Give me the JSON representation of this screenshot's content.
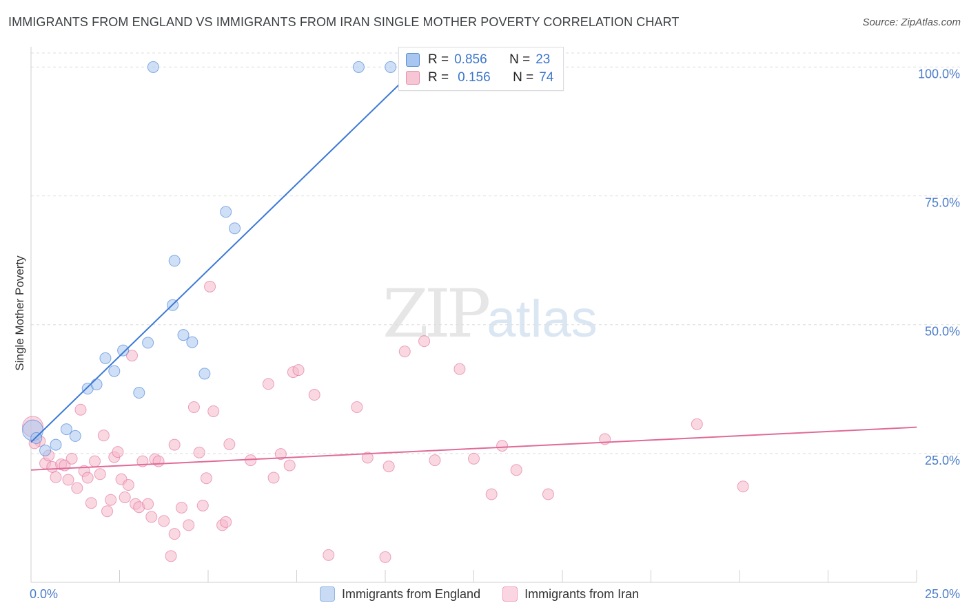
{
  "header": {
    "title": "IMMIGRANTS FROM ENGLAND VS IMMIGRANTS FROM IRAN SINGLE MOTHER POVERTY CORRELATION CHART",
    "source": "Source: ZipAtlas.com"
  },
  "watermark": {
    "zip": "ZIP",
    "atlas": "atlas"
  },
  "stats": [
    {
      "r_label": "R =",
      "r_value": "0.856",
      "n_label": "N =",
      "n_value": "23",
      "color": "#a8c6ef"
    },
    {
      "r_label": "R =",
      "r_value": "0.156",
      "n_label": "N =",
      "n_value": "74",
      "color": "#f6b8cb"
    }
  ],
  "legend": [
    {
      "label": "Immigrants from England",
      "color": "#a8c6ef"
    },
    {
      "label": "Immigrants from Iran",
      "color": "#f6b8cb"
    }
  ],
  "chart_data": {
    "type": "scatter",
    "title": "IMMIGRANTS FROM ENGLAND VS IMMIGRANTS FROM IRAN SINGLE MOTHER POVERTY CORRELATION CHART",
    "xlabel": "",
    "ylabel": "Single Mother Poverty",
    "xlim": [
      0,
      25
    ],
    "ylim": [
      0,
      105
    ],
    "x_tick_labels": [
      {
        "value": 0,
        "label": "0.0%"
      },
      {
        "value": 25,
        "label": "25.0%"
      }
    ],
    "y_tick_labels": [
      {
        "value": 25,
        "label": "25.0%"
      },
      {
        "value": 50,
        "label": "50.0%"
      },
      {
        "value": 75,
        "label": "75.0%"
      },
      {
        "value": 100,
        "label": "100.0%"
      }
    ],
    "series": [
      {
        "name": "Immigrants from England",
        "color": "#3a78d6",
        "fill": "#a8c6ef",
        "trend": {
          "x": [
            0.0,
            10.9
          ],
          "y": [
            27.2,
            100.0
          ]
        },
        "points": [
          [
            0.05,
            29.5
          ],
          [
            0.15,
            28.0
          ],
          [
            0.4,
            25.6
          ],
          [
            0.7,
            26.7
          ],
          [
            1.0,
            29.7
          ],
          [
            1.25,
            28.4
          ],
          [
            1.6,
            37.6
          ],
          [
            1.85,
            38.4
          ],
          [
            2.1,
            43.5
          ],
          [
            2.35,
            41.0
          ],
          [
            2.6,
            45.0
          ],
          [
            3.05,
            36.8
          ],
          [
            3.3,
            46.5
          ],
          [
            3.45,
            100.0
          ],
          [
            4.0,
            53.8
          ],
          [
            4.05,
            62.4
          ],
          [
            4.3,
            48.0
          ],
          [
            4.55,
            46.6
          ],
          [
            4.9,
            40.5
          ],
          [
            5.5,
            71.9
          ],
          [
            5.75,
            68.7
          ],
          [
            9.25,
            100.0
          ],
          [
            10.15,
            100.0
          ]
        ]
      },
      {
        "name": "Immigrants from Iran",
        "color": "#e06a98",
        "fill": "#f6b8cb",
        "trend": {
          "x": [
            0.0,
            25.0
          ],
          "y": [
            21.8,
            30.1
          ]
        },
        "points": [
          [
            0.05,
            30.2
          ],
          [
            0.25,
            27.4
          ],
          [
            0.4,
            23.1
          ],
          [
            0.5,
            24.6
          ],
          [
            0.6,
            22.4
          ],
          [
            0.7,
            20.4
          ],
          [
            0.85,
            22.9
          ],
          [
            0.95,
            22.7
          ],
          [
            1.05,
            19.9
          ],
          [
            1.15,
            24.0
          ],
          [
            1.3,
            18.3
          ],
          [
            1.4,
            33.5
          ],
          [
            1.5,
            21.6
          ],
          [
            1.6,
            20.3
          ],
          [
            1.7,
            15.4
          ],
          [
            1.8,
            23.5
          ],
          [
            1.95,
            21.0
          ],
          [
            2.05,
            28.5
          ],
          [
            2.15,
            13.8
          ],
          [
            2.25,
            16.0
          ],
          [
            2.35,
            24.3
          ],
          [
            2.45,
            25.3
          ],
          [
            2.55,
            20.0
          ],
          [
            2.65,
            16.5
          ],
          [
            2.75,
            18.9
          ],
          [
            2.85,
            44.0
          ],
          [
            2.95,
            15.2
          ],
          [
            3.05,
            14.6
          ],
          [
            3.15,
            23.5
          ],
          [
            3.3,
            15.2
          ],
          [
            3.4,
            12.7
          ],
          [
            3.5,
            23.9
          ],
          [
            3.6,
            23.5
          ],
          [
            3.75,
            11.9
          ],
          [
            3.95,
            5.1
          ],
          [
            4.05,
            26.7
          ],
          [
            4.05,
            9.4
          ],
          [
            4.25,
            14.5
          ],
          [
            4.45,
            11.1
          ],
          [
            4.6,
            34.0
          ],
          [
            4.75,
            25.2
          ],
          [
            4.85,
            14.9
          ],
          [
            4.95,
            20.2
          ],
          [
            5.05,
            57.4
          ],
          [
            5.15,
            33.2
          ],
          [
            5.4,
            11.1
          ],
          [
            5.5,
            11.7
          ],
          [
            5.6,
            26.8
          ],
          [
            6.2,
            23.7
          ],
          [
            6.7,
            38.5
          ],
          [
            6.85,
            20.3
          ],
          [
            7.05,
            24.9
          ],
          [
            7.3,
            22.7
          ],
          [
            7.4,
            40.8
          ],
          [
            7.55,
            41.2
          ],
          [
            8.0,
            36.4
          ],
          [
            8.4,
            5.3
          ],
          [
            9.2,
            34.0
          ],
          [
            9.5,
            24.2
          ],
          [
            10.0,
            4.9
          ],
          [
            10.1,
            22.5
          ],
          [
            10.55,
            44.8
          ],
          [
            11.1,
            46.8
          ],
          [
            11.4,
            23.7
          ],
          [
            12.1,
            41.4
          ],
          [
            12.5,
            24.0
          ],
          [
            13.0,
            17.1
          ],
          [
            13.3,
            26.5
          ],
          [
            13.7,
            21.8
          ],
          [
            14.6,
            17.1
          ],
          [
            16.2,
            27.8
          ],
          [
            18.8,
            30.7
          ],
          [
            20.1,
            18.6
          ],
          [
            0.1,
            27.0
          ]
        ]
      }
    ]
  }
}
